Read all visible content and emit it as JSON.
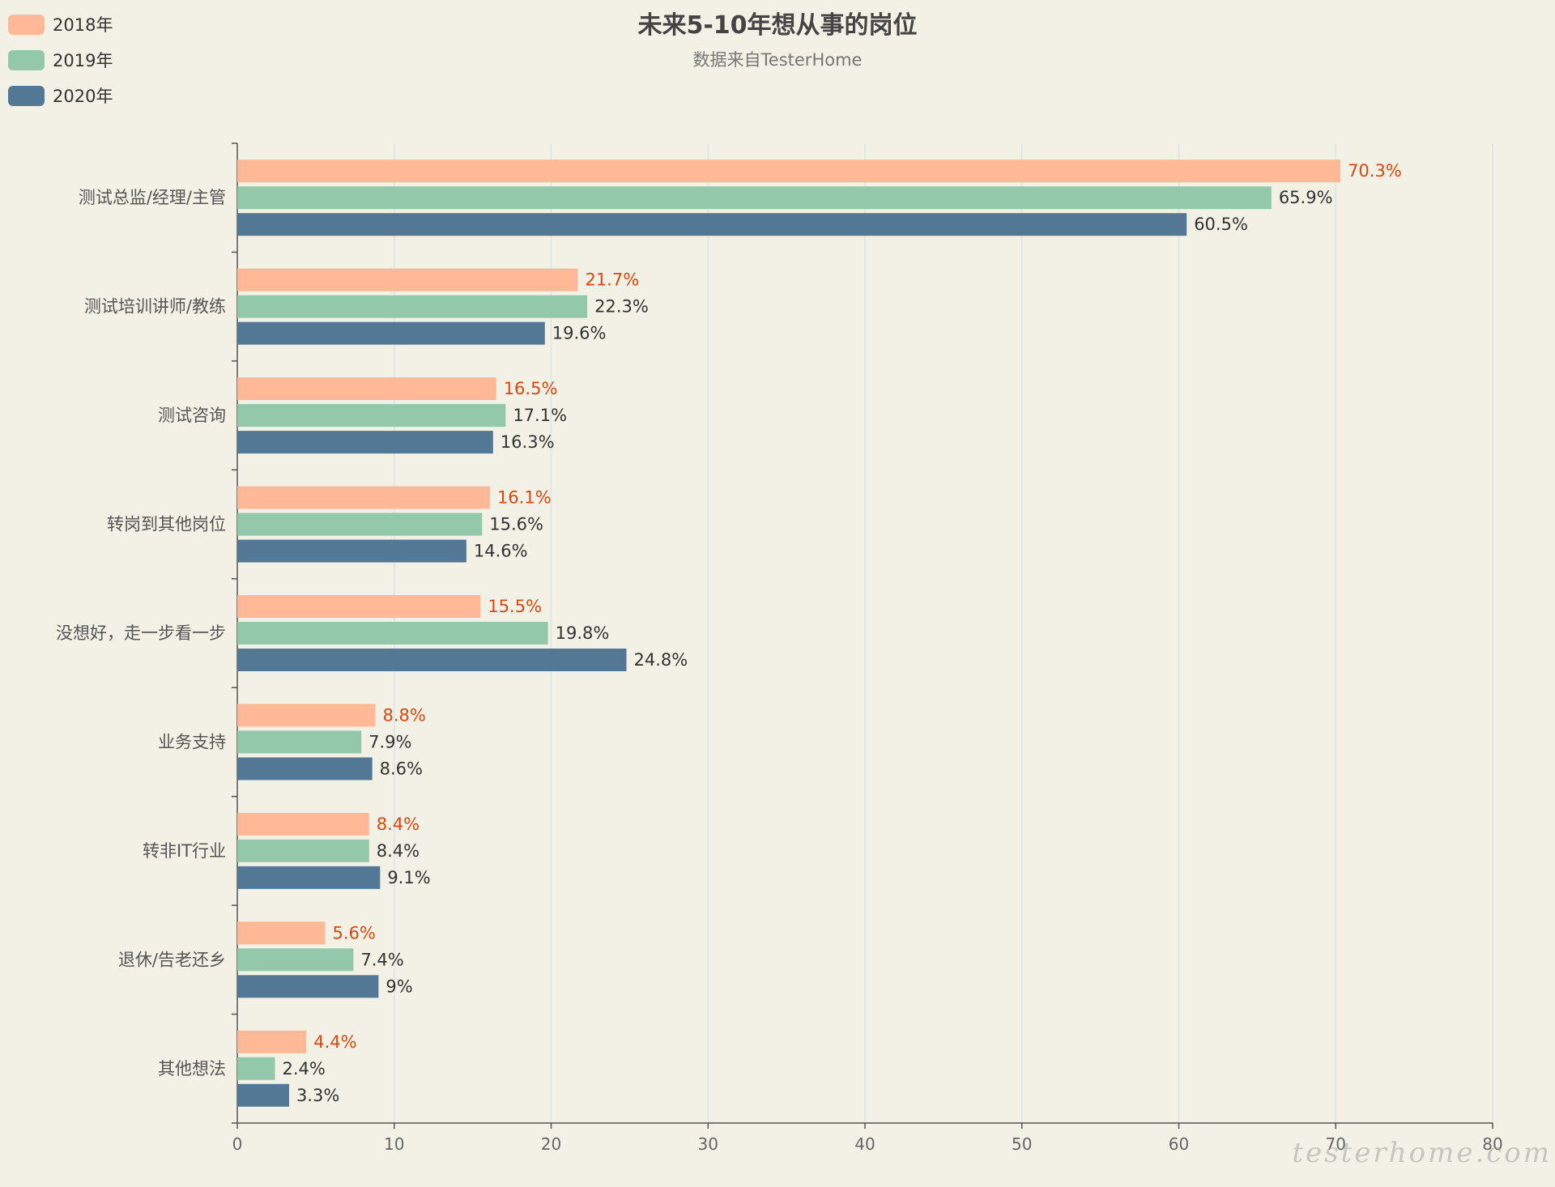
{
  "chart_data": {
    "type": "bar",
    "orientation": "horizontal",
    "title": "未来5-10年想从事的岗位",
    "subtitle": "数据来自TesterHome",
    "categories": [
      "测试总监/经理/主管",
      "测试培训讲师/教练",
      "测试咨询",
      "转岗到其他岗位",
      "没想好，走一步看一步",
      "业务支持",
      "转非IT行业",
      "退休/告老还乡",
      "其他想法"
    ],
    "series": [
      {
        "name": "2018年",
        "color": "#ffb996",
        "label_color": "#d9480f",
        "values": [
          70.3,
          21.7,
          16.5,
          16.1,
          15.5,
          8.8,
          8.4,
          5.6,
          4.4
        ],
        "labels": [
          "70.3%",
          "21.7%",
          "16.5%",
          "16.1%",
          "15.5%",
          "8.8%",
          "8.4%",
          "5.6%",
          "4.4%"
        ]
      },
      {
        "name": "2019年",
        "color": "#93c8ab",
        "label_color": "#333333",
        "values": [
          65.9,
          22.3,
          17.1,
          15.6,
          19.8,
          7.9,
          8.4,
          7.4,
          2.4
        ],
        "labels": [
          "65.9%",
          "22.3%",
          "17.1%",
          "15.6%",
          "19.8%",
          "7.9%",
          "8.4%",
          "7.4%",
          "2.4%"
        ]
      },
      {
        "name": "2020年",
        "color": "#537895",
        "label_color": "#333333",
        "values": [
          60.5,
          19.6,
          16.3,
          14.6,
          24.8,
          8.6,
          9.1,
          9,
          3.3
        ],
        "labels": [
          "60.5%",
          "19.6%",
          "16.3%",
          "14.6%",
          "24.8%",
          "8.6%",
          "9.1%",
          "9%",
          "3.3%"
        ]
      }
    ],
    "xlim": [
      0,
      80
    ],
    "xticks": [
      "0",
      "10",
      "20",
      "30",
      "40",
      "50",
      "60",
      "70",
      "80"
    ],
    "grid": true,
    "legend_position": "top-left"
  },
  "watermark": "testerhome.com"
}
